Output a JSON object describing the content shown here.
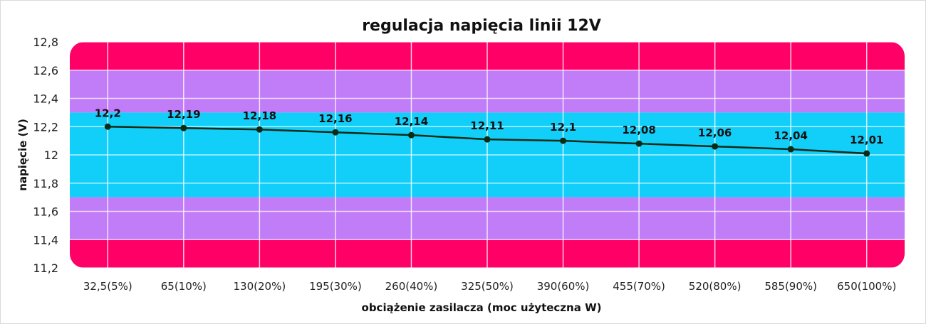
{
  "chart_data": {
    "type": "line",
    "title": "regulacja napięcia linii 12V",
    "xlabel": "obciążenie zasilacza (moc użyteczna W)",
    "ylabel": "napięcie (V)",
    "categories": [
      "32,5(5%)",
      "65(10%)",
      "130(20%)",
      "195(30%)",
      "260(40%)",
      "325(50%)",
      "390(60%)",
      "455(70%)",
      "520(80%)",
      "585(90%)",
      "650(100%)"
    ],
    "values": [
      12.2,
      12.19,
      12.18,
      12.16,
      12.14,
      12.11,
      12.1,
      12.08,
      12.06,
      12.04,
      12.01
    ],
    "data_labels": [
      "12,2",
      "12,19",
      "12,18",
      "12,16",
      "12,14",
      "12,11",
      "12,1",
      "12,08",
      "12,06",
      "12,04",
      "12,01"
    ],
    "ylim": [
      11.2,
      12.8
    ],
    "yticks": [
      12.8,
      12.6,
      12.4,
      12.2,
      12.0,
      11.8,
      11.6,
      11.4,
      11.2
    ],
    "ytick_labels": [
      "12,8",
      "12,6",
      "12,4",
      "12,2",
      "12",
      "11,8",
      "11,6",
      "11,4",
      "11,2"
    ],
    "grid": true,
    "bands": [
      {
        "from": 12.6,
        "to": 12.8,
        "color": "#ff0066"
      },
      {
        "from": 12.3,
        "to": 12.6,
        "color": "#c17cf8"
      },
      {
        "from": 11.7,
        "to": 12.3,
        "color": "#12cffa"
      },
      {
        "from": 11.4,
        "to": 11.7,
        "color": "#c17cf8"
      },
      {
        "from": 11.2,
        "to": 11.4,
        "color": "#ff0066"
      }
    ],
    "line_color": "#0c2a14"
  }
}
